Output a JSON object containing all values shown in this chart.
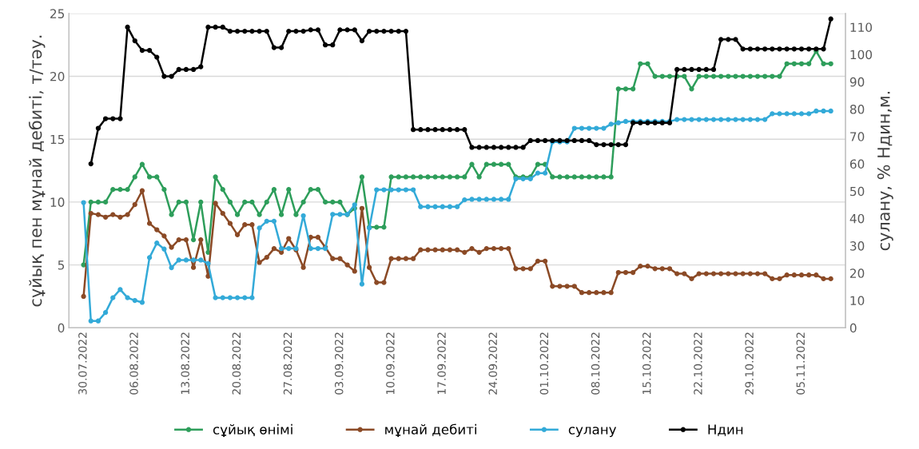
{
  "chart_data": {
    "type": "line",
    "ylabel": "сұйық пен мұнай дебиті, т/тәу.",
    "y2label": "сулану, % Ндин,м.",
    "x": [
      "2022-07-30",
      "2022-07-31",
      "2022-08-01",
      "2022-08-02",
      "2022-08-03",
      "2022-08-04",
      "2022-08-05",
      "2022-08-06",
      "2022-08-07",
      "2022-08-08",
      "2022-08-09",
      "2022-08-10",
      "2022-08-11",
      "2022-08-12",
      "2022-08-13",
      "2022-08-14",
      "2022-08-15",
      "2022-08-16",
      "2022-08-17",
      "2022-08-18",
      "2022-08-19",
      "2022-08-20",
      "2022-08-21",
      "2022-08-22",
      "2022-08-23",
      "2022-08-24",
      "2022-08-25",
      "2022-08-26",
      "2022-08-27",
      "2022-08-28",
      "2022-08-29",
      "2022-08-30",
      "2022-08-31",
      "2022-09-01",
      "2022-09-02",
      "2022-09-03",
      "2022-09-04",
      "2022-09-05",
      "2022-09-06",
      "2022-09-07",
      "2022-09-08",
      "2022-09-09",
      "2022-09-10",
      "2022-09-11",
      "2022-09-12",
      "2022-09-13",
      "2022-09-14",
      "2022-09-15",
      "2022-09-16",
      "2022-09-17",
      "2022-09-18",
      "2022-09-19",
      "2022-09-20",
      "2022-09-21",
      "2022-09-22",
      "2022-09-23",
      "2022-09-24",
      "2022-09-25",
      "2022-09-26",
      "2022-09-27",
      "2022-09-28",
      "2022-09-29",
      "2022-09-30",
      "2022-10-01",
      "2022-10-02",
      "2022-10-03",
      "2022-10-04",
      "2022-10-05",
      "2022-10-06",
      "2022-10-07",
      "2022-10-08",
      "2022-10-09",
      "2022-10-10",
      "2022-10-11",
      "2022-10-12",
      "2022-10-13",
      "2022-10-14",
      "2022-10-15",
      "2022-10-16",
      "2022-10-17",
      "2022-10-18",
      "2022-10-19",
      "2022-10-20",
      "2022-10-21",
      "2022-10-22",
      "2022-10-23",
      "2022-10-24",
      "2022-10-25",
      "2022-10-26",
      "2022-10-27",
      "2022-10-28",
      "2022-10-29",
      "2022-10-30",
      "2022-10-31",
      "2022-11-01",
      "2022-11-02",
      "2022-11-03",
      "2022-11-04",
      "2022-11-05",
      "2022-11-06",
      "2022-11-07",
      "2022-11-08",
      "2022-11-09"
    ],
    "series": [
      {
        "name": "сұйық өнімі",
        "color": "#2e9e5b",
        "values": [
          5,
          10,
          10,
          10,
          11,
          11,
          11,
          12,
          13,
          12,
          12,
          11,
          9,
          10,
          10,
          7,
          10,
          6,
          12,
          11,
          10,
          9,
          10,
          10,
          9,
          10,
          11,
          9,
          11,
          9,
          10,
          11,
          11,
          10,
          10,
          10,
          9,
          9.5,
          12,
          8,
          8,
          8,
          12,
          12,
          12,
          12,
          12,
          12,
          12,
          12,
          12,
          12,
          12,
          13,
          12,
          13,
          13,
          13,
          13,
          12,
          12,
          12,
          13,
          13,
          12,
          12,
          12,
          12,
          12,
          12,
          12,
          12,
          12,
          19,
          19,
          19,
          21,
          21,
          20,
          20,
          20,
          20,
          20,
          19,
          20,
          20,
          20,
          20,
          20,
          20,
          20,
          20,
          20,
          20,
          20,
          20,
          21,
          21,
          21,
          21,
          22,
          21,
          21
        ]
      },
      {
        "name": "мұнай дебиті",
        "color": "#8b4a26",
        "values": [
          2.5,
          9.1,
          9,
          8.8,
          9,
          8.8,
          9,
          9.8,
          10.9,
          8.3,
          7.8,
          7.3,
          6.4,
          7,
          7,
          4.8,
          7,
          4.1,
          9.9,
          9.1,
          8.3,
          7.4,
          8.2,
          8.2,
          5.2,
          5.6,
          6.3,
          6,
          7.1,
          6.2,
          4.8,
          7.2,
          7.2,
          6.4,
          5.5,
          5.5,
          5,
          4.5,
          9.5,
          4.8,
          3.6,
          3.6,
          5.5,
          5.5,
          5.5,
          5.5,
          6.2,
          6.2,
          6.2,
          6.2,
          6.2,
          6.2,
          6,
          6.3,
          6,
          6.3,
          6.3,
          6.3,
          6.3,
          4.7,
          4.7,
          4.7,
          5.3,
          5.3,
          3.3,
          3.3,
          3.3,
          3.3,
          2.8,
          2.8,
          2.8,
          2.8,
          2.8,
          4.4,
          4.4,
          4.4,
          4.9,
          4.9,
          4.7,
          4.7,
          4.7,
          4.3,
          4.3,
          3.9,
          4.3,
          4.3,
          4.3,
          4.3,
          4.3,
          4.3,
          4.3,
          4.3,
          4.3,
          4.3,
          3.9,
          3.9,
          4.2,
          4.2,
          4.2,
          4.2,
          4.2,
          3.9,
          3.9
        ]
      },
      {
        "name": "сулану",
        "color": "#33aad8",
        "axis": "y2",
        "values": [
          45.8,
          2.5,
          2.5,
          5.6,
          11,
          14,
          11,
          10,
          9.3,
          25.7,
          31,
          28.8,
          22,
          24.8,
          24.8,
          24.8,
          24.8,
          23.5,
          11,
          11,
          11,
          11,
          11,
          11,
          36.5,
          39,
          39,
          29,
          29,
          29,
          41,
          29,
          29,
          29,
          41.5,
          41.5,
          41.5,
          45,
          16,
          36.5,
          50.5,
          50.5,
          50.5,
          50.5,
          50.5,
          50.5,
          44.3,
          44.3,
          44.3,
          44.3,
          44.3,
          44.3,
          46.8,
          47,
          47,
          47,
          47,
          47,
          47,
          54.5,
          54.5,
          54.5,
          56.6,
          56.6,
          68,
          68,
          68,
          73,
          73,
          73,
          73,
          73,
          74.5,
          75,
          75.5,
          75.5,
          75.5,
          75.5,
          75.5,
          75.5,
          75.5,
          76.2,
          76.2,
          76.2,
          76.2,
          76.2,
          76.2,
          76.2,
          76.2,
          76.2,
          76.2,
          76.2,
          76.2,
          76.2,
          78.3,
          78.3,
          78.3,
          78.3,
          78.3,
          78.3,
          79.3,
          79.3,
          79.3
        ]
      },
      {
        "name": "Ндин",
        "color": "#000000",
        "axis": "y2",
        "values": [
          null,
          60,
          73,
          76.5,
          76.5,
          76.5,
          110,
          105,
          101.5,
          101.5,
          99,
          92,
          92,
          94.5,
          94.5,
          94.5,
          95.5,
          110,
          110,
          110,
          108.5,
          108.5,
          108.5,
          108.5,
          108.5,
          108.5,
          102.5,
          102.5,
          108.5,
          108.5,
          108.5,
          109,
          109,
          103.5,
          103.5,
          109,
          109,
          109,
          105,
          108.5,
          108.5,
          108.5,
          108.5,
          108.5,
          108.5,
          72.5,
          72.5,
          72.5,
          72.5,
          72.5,
          72.5,
          72.5,
          72.5,
          66,
          66,
          66,
          66,
          66,
          66,
          66,
          66,
          68.5,
          68.5,
          68.5,
          68.5,
          68.5,
          68.5,
          68.5,
          68.5,
          68.5,
          67,
          67,
          67,
          67,
          67,
          75,
          75,
          75,
          75,
          75,
          75,
          94.5,
          94.5,
          94.5,
          94.5,
          94.5,
          94.5,
          105.5,
          105.5,
          105.5,
          102,
          102,
          102,
          102,
          102,
          102,
          102,
          102,
          102,
          102,
          102,
          102,
          113
        ]
      }
    ],
    "xlim": [
      "2022-07-28",
      "2022-11-11"
    ],
    "xticks": [
      {
        "value": "2022-07-30",
        "label": "30.07.2022"
      },
      {
        "value": "2022-08-06",
        "label": "06.08.2022"
      },
      {
        "value": "2022-08-13",
        "label": "13.08.2022"
      },
      {
        "value": "2022-08-20",
        "label": "20.08.2022"
      },
      {
        "value": "2022-08-27",
        "label": "27.08.2022"
      },
      {
        "value": "2022-09-03",
        "label": "03.09.2022"
      },
      {
        "value": "2022-09-10",
        "label": "10.09.2022"
      },
      {
        "value": "2022-09-17",
        "label": "17.09.2022"
      },
      {
        "value": "2022-09-24",
        "label": "24.09.2022"
      },
      {
        "value": "2022-10-01",
        "label": "01.10.2022"
      },
      {
        "value": "2022-10-08",
        "label": "08.10.2022"
      },
      {
        "value": "2022-10-15",
        "label": "15.10.2022"
      },
      {
        "value": "2022-10-22",
        "label": "22.10.2022"
      },
      {
        "value": "2022-10-29",
        "label": "29.10.2022"
      },
      {
        "value": "2022-11-05",
        "label": "05.11.2022"
      }
    ],
    "ylim": [
      0,
      25
    ],
    "yticks": [
      0,
      5,
      10,
      15,
      20,
      25
    ],
    "y2lim": [
      0,
      115
    ],
    "y2ticks": [
      0,
      10,
      20,
      30,
      40,
      50,
      60,
      70,
      80,
      90,
      100,
      110
    ],
    "grid": "y",
    "legend": "bottom",
    "marker": "circle",
    "line_style": "solid"
  }
}
